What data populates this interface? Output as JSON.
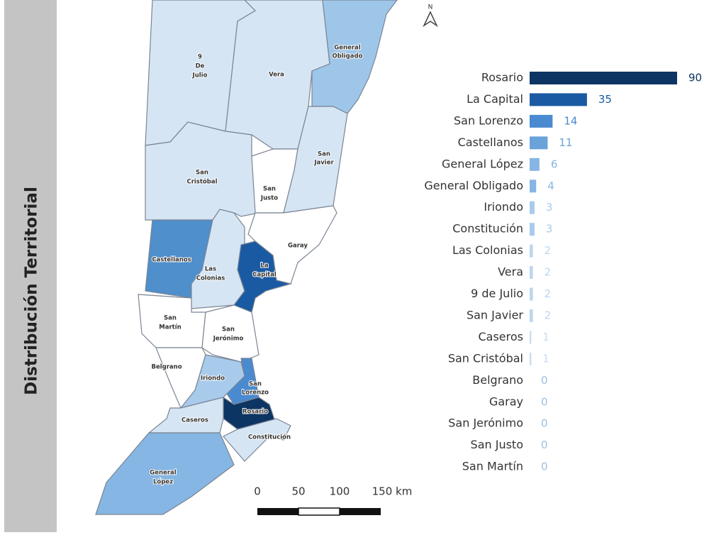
{
  "sidebar_title": "Distribución Territorial",
  "map": {
    "north": "N",
    "scale_labels": [
      "0",
      "50",
      "100",
      "150 km"
    ],
    "regions": [
      {
        "lines": [
          "9",
          "De",
          "Julio"
        ]
      },
      {
        "lines": [
          "Vera"
        ]
      },
      {
        "lines": [
          "General",
          "Obligado"
        ]
      },
      {
        "lines": [
          "San",
          "Cristóbal"
        ]
      },
      {
        "lines": [
          "San",
          "Justo"
        ]
      },
      {
        "lines": [
          "San",
          "Javier"
        ]
      },
      {
        "lines": [
          "Garay"
        ]
      },
      {
        "lines": [
          "Castellanos"
        ]
      },
      {
        "lines": [
          "Las",
          "Colonias"
        ]
      },
      {
        "lines": [
          "La",
          "Capital"
        ]
      },
      {
        "lines": [
          "San",
          "Martín"
        ]
      },
      {
        "lines": [
          "San",
          "Jerónimo"
        ]
      },
      {
        "lines": [
          "Belgrano"
        ]
      },
      {
        "lines": [
          "Iriondo"
        ]
      },
      {
        "lines": [
          "San",
          "Lorenzo"
        ]
      },
      {
        "lines": [
          "Rosario"
        ]
      },
      {
        "lines": [
          "Constitución"
        ]
      },
      {
        "lines": [
          "Caseros"
        ]
      },
      {
        "lines": [
          "General",
          "López"
        ]
      }
    ]
  },
  "chart_data": {
    "type": "hbar",
    "categories": [
      "Rosario",
      "La Capital",
      "San Lorenzo",
      "Castellanos",
      "General López",
      "General Obligado",
      "Iriondo",
      "Constitución",
      "Las Colonias",
      "Vera",
      "9 de Julio",
      "San Javier",
      "Caseros",
      "San Cristóbal",
      "Belgrano",
      "Garay",
      "San Jerónimo",
      "San Justo",
      "San Martín"
    ],
    "values": [
      90,
      35,
      14,
      11,
      6,
      4,
      3,
      3,
      2,
      2,
      2,
      2,
      1,
      1,
      0,
      0,
      0,
      0,
      0
    ],
    "colors": [
      "#0d3563",
      "#1a5aa3",
      "#4a8ad0",
      "#6aa3da",
      "#86b6e3",
      "#86b6e3",
      "#a8cbec",
      "#a8cbec",
      "#bcd6f0",
      "#bcd6f0",
      "#bcd6f0",
      "#bcd6f0",
      "#c9dcef",
      "#c9dcef",
      "#9bbfe0",
      "#9bbfe0",
      "#9bbfe0",
      "#9bbfe0",
      "#9bbfe0"
    ],
    "xlim": [
      0,
      90
    ]
  }
}
